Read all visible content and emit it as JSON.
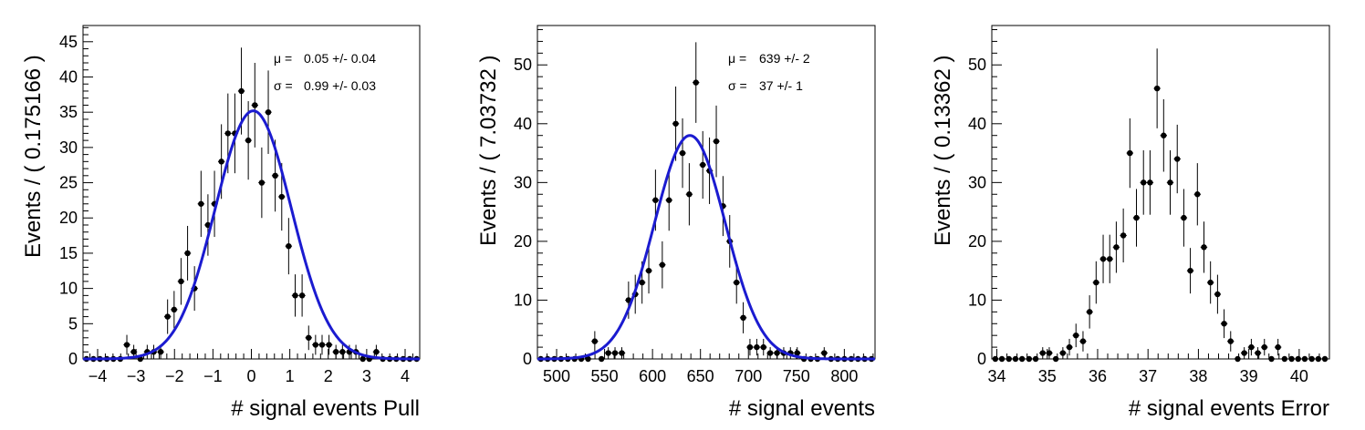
{
  "chart_data": [
    {
      "type": "scatter",
      "xlabel": "# signal events Pull",
      "ylabel": "Events / ( 0.175166 )",
      "xlim": [
        -4.38,
        4.38
      ],
      "ylim": [
        0,
        47.3
      ],
      "xticks": [
        "−4",
        "−3",
        "−2",
        "−1",
        "0",
        "1",
        "2",
        "3",
        "4"
      ],
      "yticks": [
        "0",
        "5",
        "10",
        "15",
        "20",
        "25",
        "30",
        "35",
        "40",
        "45"
      ],
      "bin_width": 0.175166,
      "x": [
        -4.29,
        -4.11,
        -3.94,
        -3.76,
        -3.59,
        -3.41,
        -3.24,
        -3.06,
        -2.89,
        -2.71,
        -2.54,
        -2.36,
        -2.18,
        -2.01,
        -1.83,
        -1.66,
        -1.48,
        -1.31,
        -1.13,
        -0.96,
        -0.78,
        -0.61,
        -0.43,
        -0.26,
        -0.08,
        0.09,
        0.27,
        0.44,
        0.62,
        0.79,
        0.97,
        1.14,
        1.32,
        1.49,
        1.67,
        1.84,
        2.02,
        2.2,
        2.37,
        2.55,
        2.72,
        2.9,
        3.07,
        3.25,
        3.42,
        3.6,
        3.77,
        3.95,
        4.12,
        4.3
      ],
      "values": [
        0,
        0,
        0,
        0,
        0,
        0,
        2,
        1,
        0,
        1,
        1,
        1,
        6,
        7,
        11,
        15,
        10,
        22,
        19,
        22,
        28,
        32,
        32,
        38,
        31,
        36,
        25,
        35,
        26,
        23,
        16,
        9,
        9,
        3,
        2,
        2,
        2,
        1,
        1,
        1,
        1,
        0,
        0,
        1,
        0,
        0,
        0,
        0,
        0,
        0
      ],
      "fit": {
        "mean": 0.05,
        "sigma": 0.99,
        "peak": 35.2
      },
      "annotations": [
        {
          "symbol": "μ =",
          "value": "0.05 +/- 0.04"
        },
        {
          "symbol": "σ =",
          "value": "0.99 +/- 0.03"
        }
      ],
      "colors": {
        "fit": "#1b1bd0",
        "points": "#000000"
      }
    },
    {
      "type": "scatter",
      "xlabel": "# signal events",
      "ylabel": "Events / ( 7.03732 )",
      "xlim": [
        480,
        832
      ],
      "ylim": [
        0,
        56.7
      ],
      "xticks": [
        "500",
        "550",
        "600",
        "650",
        "700",
        "750",
        "800"
      ],
      "yticks": [
        "0",
        "10",
        "20",
        "30",
        "40",
        "50"
      ],
      "bin_width": 7.03732,
      "x": [
        483.5,
        490.6,
        497.6,
        504.6,
        511.7,
        518.7,
        525.7,
        532.8,
        539.8,
        546.8,
        553.9,
        560.9,
        568.0,
        575.0,
        582.0,
        589.1,
        596.1,
        603.1,
        610.2,
        617.2,
        624.2,
        631.3,
        638.3,
        645.3,
        652.4,
        659.4,
        666.5,
        673.5,
        680.5,
        687.6,
        694.6,
        701.6,
        708.7,
        715.7,
        722.7,
        729.8,
        736.8,
        743.8,
        750.9,
        757.9,
        765.0,
        772.0,
        779.0,
        786.1,
        793.1,
        800.1,
        807.2,
        814.2,
        821.2,
        828.3
      ],
      "values": [
        0,
        0,
        0,
        0,
        0,
        0,
        0,
        0,
        3,
        0,
        1,
        1,
        1,
        10,
        11,
        13,
        15,
        27,
        16,
        27,
        40,
        35,
        28,
        47,
        33,
        32,
        37,
        26,
        20,
        13,
        7,
        2,
        2,
        2,
        1,
        1,
        1,
        1,
        1,
        0,
        0,
        0,
        1,
        0,
        0,
        0,
        0,
        0,
        0,
        0
      ],
      "fit": {
        "mean": 639,
        "sigma": 37,
        "peak": 38.0
      },
      "annotations": [
        {
          "symbol": "μ =",
          "value": "639 +/- 2"
        },
        {
          "symbol": "σ =",
          "value": "37 +/- 1"
        }
      ],
      "colors": {
        "fit": "#1b1bd0",
        "points": "#000000"
      }
    },
    {
      "type": "scatter",
      "xlabel": "# signal events Error",
      "ylabel": "Events / ( 0.13362 )",
      "xlim": [
        33.9,
        40.6
      ],
      "ylim": [
        0,
        56.7
      ],
      "xticks": [
        "34",
        "35",
        "36",
        "37",
        "38",
        "39",
        "40"
      ],
      "yticks": [
        "0",
        "10",
        "20",
        "30",
        "40",
        "50"
      ],
      "bin_width": 0.13362,
      "x": [
        33.97,
        34.1,
        34.24,
        34.37,
        34.5,
        34.64,
        34.77,
        34.91,
        35.04,
        35.17,
        35.31,
        35.44,
        35.57,
        35.71,
        35.84,
        35.97,
        36.11,
        36.24,
        36.37,
        36.51,
        36.64,
        36.77,
        36.91,
        37.04,
        37.18,
        37.31,
        37.44,
        37.58,
        37.71,
        37.84,
        37.98,
        38.11,
        38.24,
        38.38,
        38.51,
        38.64,
        38.78,
        38.91,
        39.05,
        39.18,
        39.31,
        39.45,
        39.58,
        39.71,
        39.85,
        39.98,
        40.11,
        40.25,
        40.38,
        40.51
      ],
      "values": [
        0,
        0,
        0,
        0,
        0,
        0,
        0,
        1,
        1,
        0,
        1,
        2,
        4,
        3,
        8,
        13,
        17,
        17,
        19,
        21,
        35,
        24,
        30,
        30,
        46,
        38,
        30,
        34,
        24,
        15,
        28,
        19,
        13,
        11,
        6,
        3,
        0,
        1,
        2,
        1,
        2,
        0,
        2,
        0,
        0,
        0,
        0,
        0,
        0,
        0
      ],
      "annotations": [],
      "colors": {
        "points": "#000000"
      }
    }
  ]
}
